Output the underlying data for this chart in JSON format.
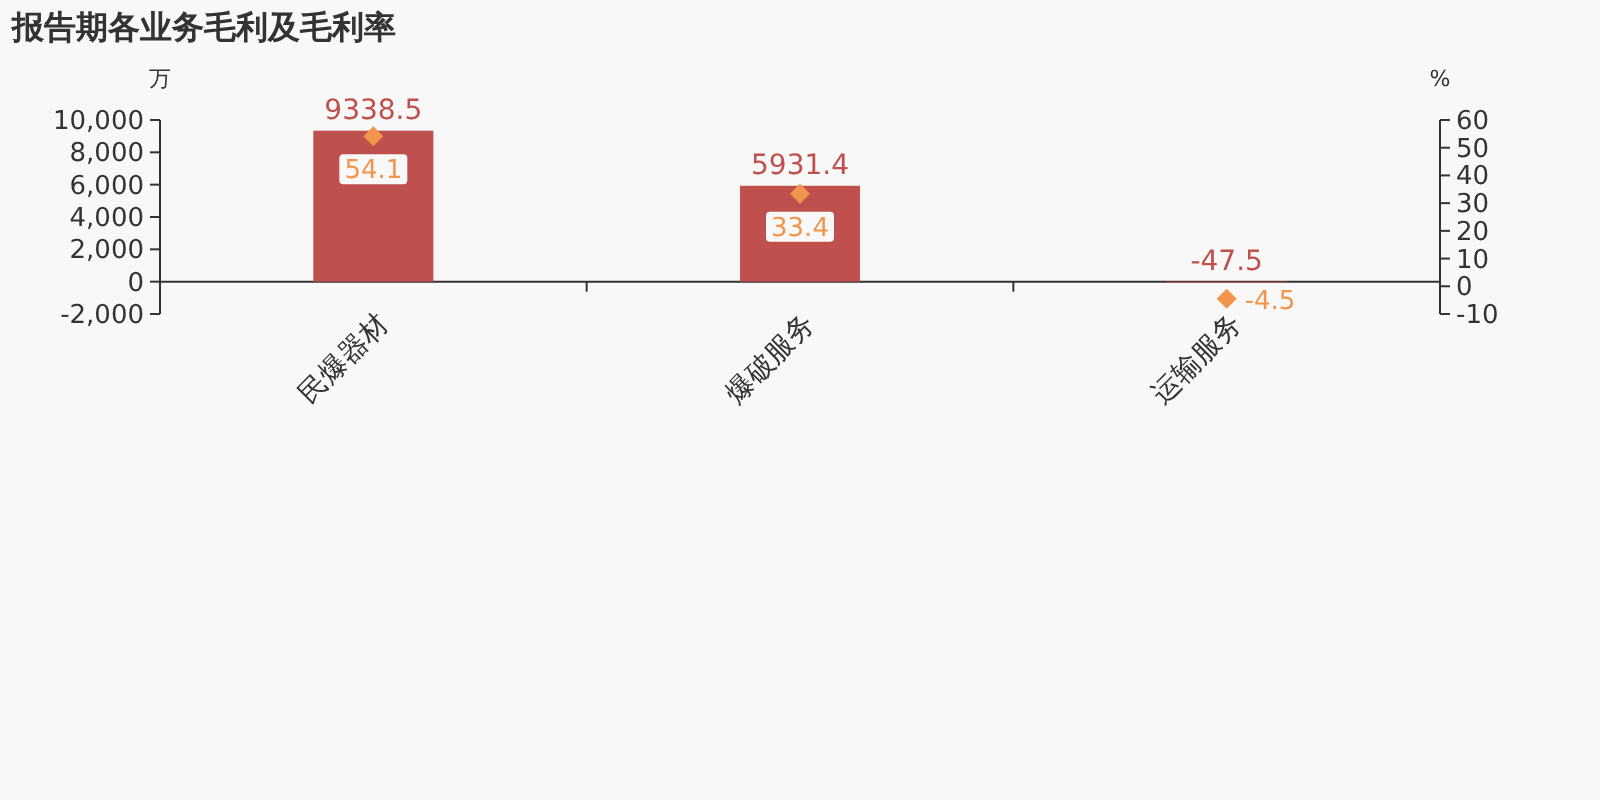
{
  "chart_data": {
    "type": "bar",
    "title": "报告期各业务毛利及毛利率",
    "ylabel": "万",
    "y2label": "%",
    "categories": [
      "民爆器材",
      "爆破服务",
      "运输服务"
    ],
    "series": [
      {
        "color": "#c0504d",
        "values": [
          9338.5,
          5931.4,
          -47.5
        ]
      },
      {
        "type": "scatter",
        "axis": "y2",
        "marker": "diamond",
        "color": "#f0954a",
        "values": [
          54.1,
          33.4,
          -4.5
        ]
      }
    ],
    "ylim": [
      -2000,
      10000
    ],
    "yticks": [
      {
        "value": -2000,
        "label": "-2,000"
      },
      0,
      {
        "value": 2000,
        "label": "2,000"
      },
      {
        "value": 4000,
        "label": "4,000"
      },
      {
        "value": 6000,
        "label": "6,000"
      },
      {
        "value": 8000,
        "label": "8,000"
      },
      {
        "value": 10000,
        "label": "10,000"
      }
    ],
    "y2lim": [
      -10,
      60
    ],
    "y2ticks": [
      -10,
      0,
      10,
      20,
      30,
      40,
      50,
      60
    ],
    "data_labels": true
  }
}
